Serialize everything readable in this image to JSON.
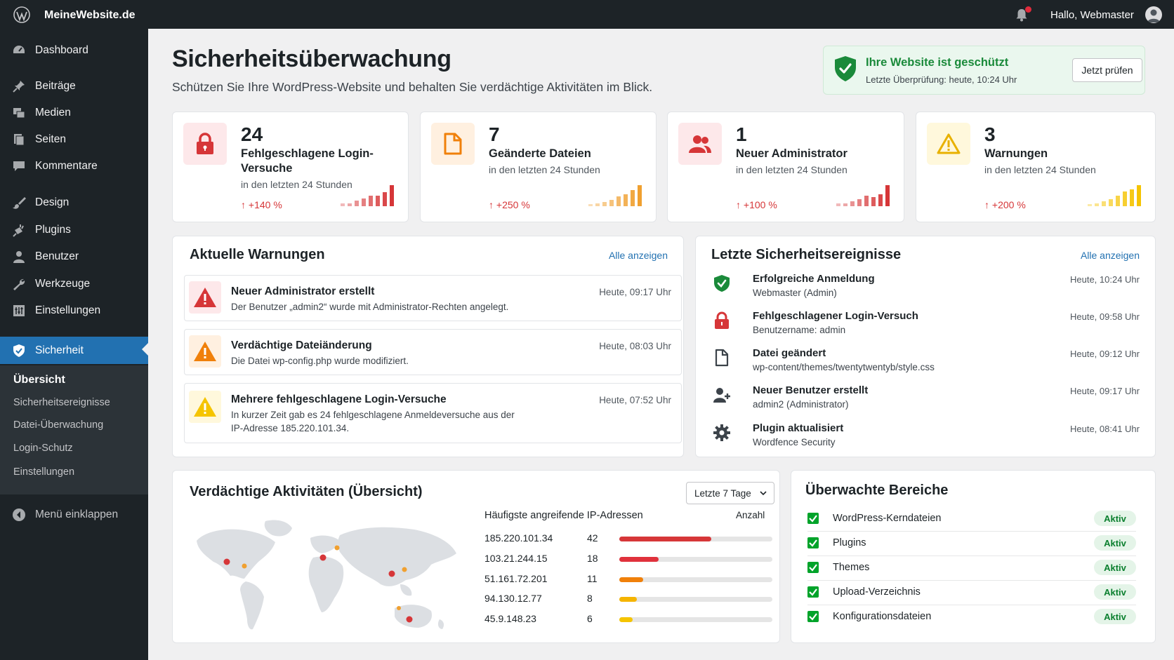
{
  "topbar": {
    "site_name": "MeineWebsite.de",
    "greeting": "Hallo, Webmaster"
  },
  "sidebar": {
    "items": [
      {
        "label": "Dashboard",
        "icon": "dashboard-icon"
      },
      {
        "label": "Beiträge",
        "icon": "pin-icon"
      },
      {
        "label": "Medien",
        "icon": "media-icon"
      },
      {
        "label": "Seiten",
        "icon": "pages-icon"
      },
      {
        "label": "Kommentare",
        "icon": "comment-icon"
      },
      {
        "label": "Design",
        "icon": "brush-icon"
      },
      {
        "label": "Plugins",
        "icon": "plugin-icon"
      },
      {
        "label": "Benutzer",
        "icon": "user-icon"
      },
      {
        "label": "Werkzeuge",
        "icon": "wrench-icon"
      },
      {
        "label": "Einstellungen",
        "icon": "settings-icon"
      },
      {
        "label": "Sicherheit",
        "icon": "shield-icon"
      }
    ],
    "submenu": [
      "Übersicht",
      "Sicherheitsereignisse",
      "Datei-Überwachung",
      "Login-Schutz",
      "Einstellungen"
    ],
    "collapse_label": "Menü einklappen"
  },
  "header": {
    "title": "Sicherheitsüberwachung",
    "subtitle": "Schützen Sie Ihre WordPress-Website und behalten Sie verdächtige Aktivitäten im Blick."
  },
  "protection": {
    "title": "Ihre Website ist geschützt",
    "last_check": "Letzte Überprüfung: heute, 10:24 Uhr",
    "button": "Jetzt prüfen"
  },
  "stats": [
    {
      "value": "24",
      "label": "Fehlgeschlagene Login-Versuche",
      "period": "in den letzten 24 Stunden",
      "trend": "+140 %",
      "color": "#d63638",
      "bars": [
        0.12,
        0.12,
        0.25,
        0.35,
        0.5,
        0.5,
        0.68,
        1.0
      ]
    },
    {
      "value": "7",
      "label": "Geänderte Dateien",
      "period": "in den letzten 24 Stunden",
      "trend": "+250 %",
      "color": "#f0a030",
      "bars": [
        0.1,
        0.12,
        0.2,
        0.3,
        0.45,
        0.55,
        0.75,
        1.0
      ]
    },
    {
      "value": "1",
      "label": "Neuer Administrator",
      "period": "in den letzten 24 Stunden",
      "trend": "+100 %",
      "color": "#d63638",
      "bars": [
        0.12,
        0.12,
        0.22,
        0.32,
        0.5,
        0.42,
        0.55,
        1.0
      ]
    },
    {
      "value": "3",
      "label": "Warnungen",
      "period": "in den letzten 24 Stunden",
      "trend": "+200 %",
      "color": "#f5c400",
      "bars": [
        0.1,
        0.12,
        0.22,
        0.32,
        0.5,
        0.7,
        0.8,
        1.0
      ]
    }
  ],
  "warnings": {
    "title": "Aktuelle Warnungen",
    "link": "Alle anzeigen",
    "items": [
      {
        "title": "Neuer Administrator erstellt",
        "desc": "Der Benutzer „admin2“ wurde mit Administrator-Rechten angelegt.",
        "time": "Heute, 09:17 Uhr",
        "color": "#d63638",
        "bg": "#fde8ea"
      },
      {
        "title": "Verdächtige Dateiänderung",
        "desc": "Die Datei wp-config.php wurde modifiziert.",
        "time": "Heute, 08:03 Uhr",
        "color": "#f0800a",
        "bg": "#fff0e0"
      },
      {
        "title": "Mehrere fehlgeschlagene Login-Versuche",
        "desc": "In kurzer Zeit gab es 24 fehlgeschlagene Anmeldeversuche aus der IP-Adresse 185.220.101.34.",
        "time": "Heute, 07:52 Uhr",
        "color": "#f5c400",
        "bg": "#fff8dc"
      }
    ]
  },
  "events": {
    "title": "Letzte Sicherheitsereignisse",
    "link": "Alle anzeigen",
    "items": [
      {
        "title": "Erfolgreiche Anmeldung",
        "desc": "Webmaster (Admin)",
        "time": "Heute, 10:24 Uhr",
        "icon": "check-shield-icon"
      },
      {
        "title": "Fehlgeschlagener Login-Versuch",
        "desc": "Benutzername: admin",
        "time": "Heute, 09:58 Uhr",
        "icon": "lock-icon"
      },
      {
        "title": "Datei geändert",
        "desc": "wp-content/themes/twentytwentyb/style.css",
        "time": "Heute, 09:12 Uhr",
        "icon": "file-icon"
      },
      {
        "title": "Neuer Benutzer erstellt",
        "desc": "admin2 (Administrator)",
        "time": "Heute, 09:17 Uhr",
        "icon": "user-add-icon"
      },
      {
        "title": "Plugin aktualisiert",
        "desc": "Wordfence Security",
        "time": "Heute, 08:41 Uhr",
        "icon": "gear-icon"
      }
    ]
  },
  "activity": {
    "title": "Verdächtige Aktivitäten (Übersicht)",
    "range": "Letzte 7 Tage",
    "ip_heading": "Häufigste angreifende IP-Adressen",
    "count_heading": "Anzahl",
    "ips": [
      {
        "ip": "185.220.101.34",
        "count": 42,
        "color": "#d63638"
      },
      {
        "ip": "103.21.244.15",
        "count": 18,
        "color": "#e0323c"
      },
      {
        "ip": "51.161.72.201",
        "count": 11,
        "color": "#f0800a"
      },
      {
        "ip": "94.130.12.77",
        "count": 8,
        "color": "#f5b400"
      },
      {
        "ip": "45.9.148.23",
        "count": 6,
        "color": "#f5c400"
      }
    ],
    "max_count": 70
  },
  "monitored": {
    "title": "Überwachte Bereiche",
    "items": [
      {
        "label": "WordPress-Kerndateien",
        "status": "Aktiv"
      },
      {
        "label": "Plugins",
        "status": "Aktiv"
      },
      {
        "label": "Themes",
        "status": "Aktiv"
      },
      {
        "label": "Upload-Verzeichnis",
        "status": "Aktiv"
      },
      {
        "label": "Konfigurationsdateien",
        "status": "Aktiv"
      }
    ]
  }
}
